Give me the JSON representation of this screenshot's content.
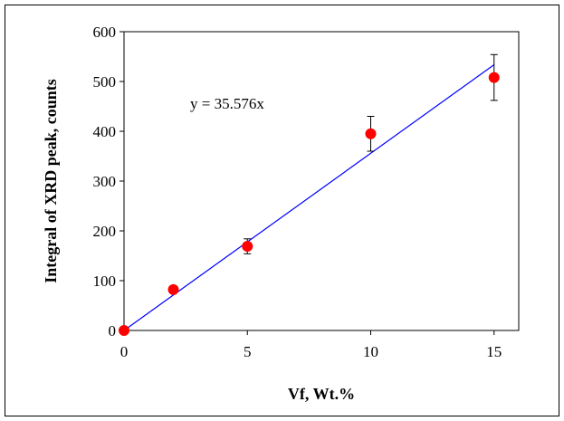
{
  "chart_data": {
    "type": "scatter",
    "xlabel": "Vf, Wt.%",
    "ylabel": "Integral of XRD peak, counts",
    "xlim": [
      0,
      16
    ],
    "ylim": [
      0,
      600
    ],
    "x_ticks": [
      0,
      5,
      10,
      15
    ],
    "y_ticks": [
      0,
      100,
      200,
      300,
      400,
      500,
      600
    ],
    "grid": false,
    "series": [
      {
        "points": [
          {
            "x": 0,
            "y": 0
          },
          {
            "x": 2,
            "y": 82
          },
          {
            "x": 5,
            "y": 169,
            "err": 15
          },
          {
            "x": 10,
            "y": 395,
            "err": 35
          },
          {
            "x": 15,
            "y": 508,
            "err": 46
          }
        ],
        "color": "#ff0000"
      }
    ],
    "trendline": {
      "slope": 35.576,
      "x_range": [
        0,
        15
      ],
      "color": "#0000ff",
      "label": "y = 35.576x"
    }
  }
}
